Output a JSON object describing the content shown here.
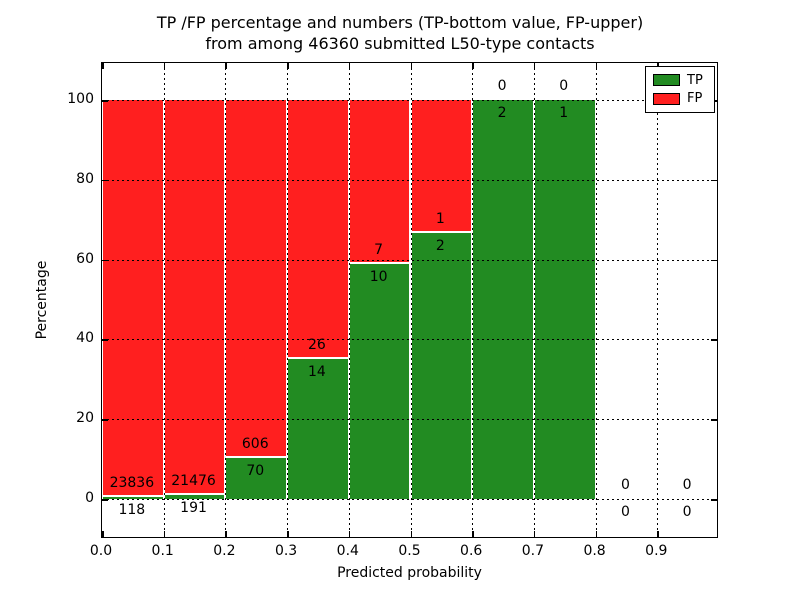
{
  "title": {
    "line1": "TP /FP percentage and numbers (TP-bottom value, FP-upper)",
    "line2": "from among 46360 submitted L50-type contacts"
  },
  "colors": {
    "tp_green": "#228B22",
    "fp_red": "#FF1F1F",
    "background": "#FFFFFF",
    "text": "#000000",
    "grid": "#000000"
  },
  "legend": {
    "position": "upper right",
    "entries": [
      {
        "label": "TP",
        "color": "#228B22"
      },
      {
        "label": "FP",
        "color": "#FF1F1F"
      }
    ]
  },
  "chart_data": {
    "type": "bar",
    "stacked": true,
    "normalized_to_percent": true,
    "title": "TP /FP percentage and numbers (TP-bottom value, FP-upper) from among 46360 submitted L50-type contacts",
    "total_submitted": 46360,
    "contact_type": "L50",
    "xlabel": "Predicted probability",
    "ylabel": "Percentage",
    "bin_width": 0.1,
    "bin_left_edges": [
      0.0,
      0.1,
      0.2,
      0.3,
      0.4,
      0.5,
      0.6,
      0.7,
      0.8,
      0.9
    ],
    "series": [
      {
        "name": "TP",
        "values": [
          118,
          191,
          70,
          14,
          10,
          2,
          2,
          1,
          0,
          0
        ]
      },
      {
        "name": "FP",
        "values": [
          23836,
          21476,
          606,
          26,
          7,
          1,
          0,
          0,
          0,
          0
        ]
      }
    ],
    "x_tick_labels": [
      "0.0",
      "0.1",
      "0.2",
      "0.3",
      "0.4",
      "0.5",
      "0.6",
      "0.7",
      "0.8",
      "0.9"
    ],
    "y_tick_labels": [
      "0",
      "20",
      "40",
      "60",
      "80",
      "100"
    ],
    "y_tick_values": [
      0,
      20,
      40,
      60,
      80,
      100
    ],
    "xlim": [
      0.0,
      1.0
    ],
    "ylim": [
      -10,
      110
    ],
    "grid": "dotted",
    "legend_position": "upper right"
  }
}
